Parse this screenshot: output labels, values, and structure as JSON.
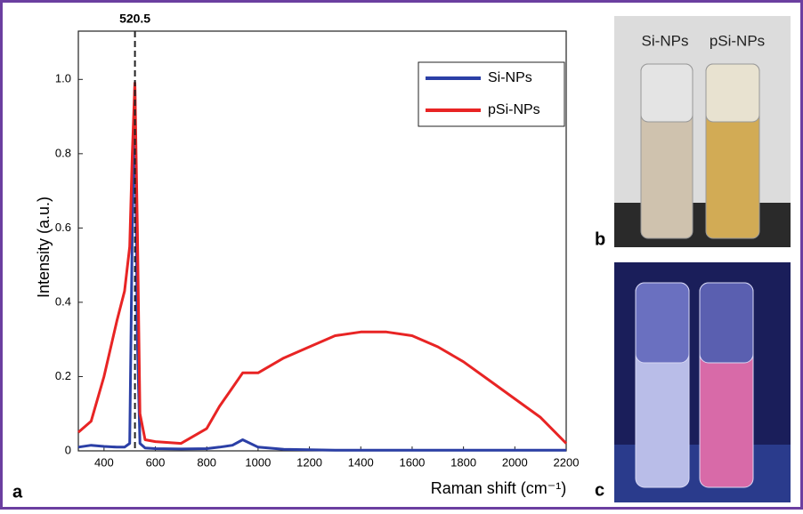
{
  "chart_data": {
    "type": "line",
    "x_label": "Raman shift (cm⁻¹)",
    "y_label": "Intensity (a.u.)",
    "x": [
      300,
      350,
      400,
      450,
      480,
      500,
      510,
      520,
      530,
      540,
      560,
      600,
      700,
      800,
      850,
      900,
      940,
      1000,
      1100,
      1200,
      1300,
      1400,
      1500,
      1600,
      1700,
      1800,
      1900,
      2000,
      2100,
      2200
    ],
    "series": [
      {
        "name": "Si-NPs",
        "color": "#2b3fa6",
        "values": [
          0.01,
          0.015,
          0.012,
          0.01,
          0.01,
          0.02,
          0.6,
          0.99,
          0.3,
          0.02,
          0.008,
          0.006,
          0.005,
          0.006,
          0.01,
          0.015,
          0.03,
          0.01,
          0.004,
          0.003,
          0.002,
          0.002,
          0.002,
          0.002,
          0.002,
          0.002,
          0.002,
          0.002,
          0.002,
          0.002
        ]
      },
      {
        "name": "pSi-NPs",
        "color": "#e82424",
        "values": [
          0.05,
          0.08,
          0.2,
          0.35,
          0.43,
          0.55,
          0.8,
          0.99,
          0.6,
          0.1,
          0.03,
          0.025,
          0.02,
          0.06,
          0.12,
          0.17,
          0.21,
          0.21,
          0.25,
          0.28,
          0.31,
          0.32,
          0.32,
          0.31,
          0.28,
          0.24,
          0.19,
          0.14,
          0.09,
          0.02
        ]
      }
    ],
    "vline": 520.5,
    "xlim": [
      300,
      2200
    ],
    "xticks": [
      400,
      600,
      800,
      1000,
      1200,
      1400,
      1600,
      1800,
      2000,
      2200
    ],
    "ylim": [
      0,
      1.13
    ],
    "yticks": [
      0,
      0.2,
      0.4,
      0.6,
      0.8,
      {
        "value": 1,
        "label": "1.0"
      }
    ],
    "legend": "upper right"
  },
  "photo_labels": [
    "Si-NPs",
    "pSi-NPs"
  ],
  "panel_labels": [
    "a",
    "b",
    "c"
  ]
}
